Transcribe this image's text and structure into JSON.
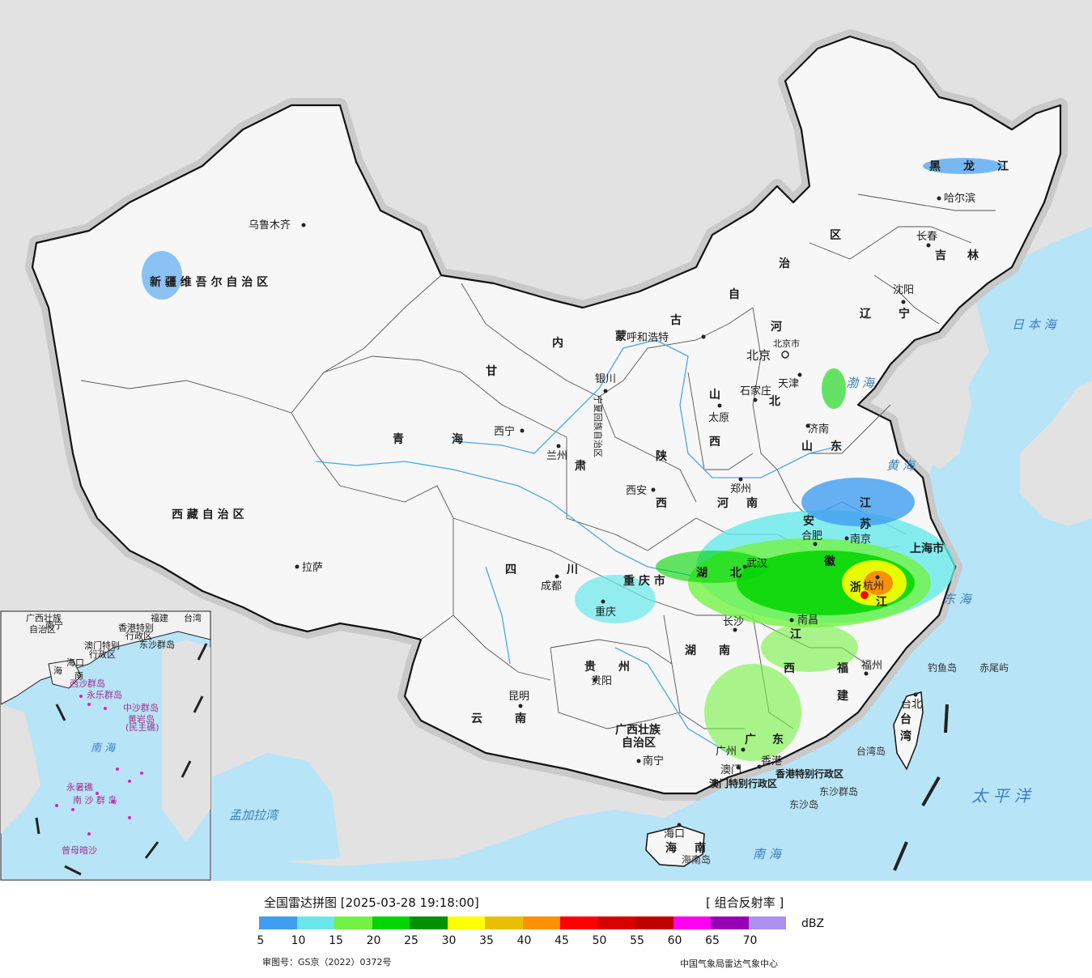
{
  "title": "全国雷达拼图 [2025-03-28 19:18:00]",
  "product": "[ 组合反射率 ]",
  "unit": "dBZ",
  "approval": "审图号：GS京（2022）0372号",
  "agency": "中国气象局雷达气象中心",
  "legend": {
    "colors": [
      "#3f9ef0",
      "#68e8ea",
      "#73f243",
      "#00d600",
      "#009100",
      "#ffff00",
      "#e6c000",
      "#ff9000",
      "#ff0000",
      "#d80000",
      "#c00000",
      "#ff00f0",
      "#9600b4",
      "#ad90f0"
    ],
    "ticks": [
      "5",
      "10",
      "15",
      "20",
      "25",
      "30",
      "35",
      "40",
      "45",
      "50",
      "55",
      "60",
      "65",
      "70"
    ]
  },
  "provinces": {
    "xinjiang": "新 疆 维 吾 尔 自 治 区",
    "xizang": "西 藏 自 治 区",
    "qinghai_1": "青",
    "qinghai_2": "海",
    "gansu_1": "甘",
    "gansu_2": "肃",
    "neimenggu_1": "内",
    "neimenggu_2": "蒙",
    "neimenggu_3": "古",
    "neimenggu_4": "自",
    "neimenggu_5": "治",
    "neimenggu_6": "区",
    "heilongjiang_1": "黑",
    "heilongjiang_2": "龙",
    "heilongjiang_3": "江",
    "jilin_1": "吉",
    "jilin_2": "林",
    "liaoning_1": "辽",
    "liaoning_2": "宁",
    "hebei_1": "河",
    "hebei_2": "北",
    "shanxi_1": "山",
    "shanxi_2": "西",
    "shaanxi_1": "陕",
    "shaanxi_2": "西",
    "shandong_1": "山",
    "shandong_2": "东",
    "henan_1": "河",
    "henan_2": "南",
    "jiangsu_1": "江",
    "jiangsu_2": "苏",
    "anhui_1": "安",
    "anhui_2": "徽",
    "hubei_1": "湖",
    "hubei_2": "北",
    "sichuan_1": "四",
    "sichuan_2": "川",
    "chongqing": "重 庆 市",
    "hunan_1": "湖",
    "hunan_2": "南",
    "jiangxi_1": "江",
    "jiangxi_2": "西",
    "zhejiang_1": "浙",
    "zhejiang_2": "江",
    "fujian_1": "福",
    "fujian_2": "建",
    "guizhou_1": "贵",
    "guizhou_2": "州",
    "yunnan_1": "云",
    "yunnan_2": "南",
    "guangxi_1": "广西壮族",
    "guangxi_2": "自治区",
    "guangdong_1": "广",
    "guangdong_2": "东",
    "hainan_1": "海",
    "hainan_2": "南",
    "taiwan_1": "台",
    "taiwan_2": "湾",
    "shanghai": "上海市",
    "ningxia": "宁夏回族自治区",
    "tianjin": "天津",
    "beijing_city": "北京市",
    "xianggang": "香港特别行政区",
    "aomen": "澳门特别行政区"
  },
  "cities": {
    "urumqi": "乌鲁木齐",
    "lhasa": "拉萨",
    "xining": "西宁",
    "lanzhou": "兰州",
    "yinchuan": "银川",
    "huhehaote": "呼和浩特",
    "beijing": "北京",
    "tianjin": "天津",
    "shijiazhuang": "石家庄",
    "taiyuan": "太原",
    "jinan": "济南",
    "zhengzhou": "郑州",
    "xian": "西安",
    "chengdu": "成都",
    "chongqing": "重庆",
    "wuhan": "武汉",
    "changsha": "长沙",
    "nanchang": "南昌",
    "hefei": "合肥",
    "nanjing": "南京",
    "hangzhou": "杭州",
    "fuzhou": "福州",
    "guiyang": "贵阳",
    "kunming": "昆明",
    "nanning": "南宁",
    "guangzhou": "广州",
    "aomen": "澳门",
    "xianggang": "香港",
    "haikou": "海口",
    "taibei": "台北",
    "shenyang": "沈阳",
    "changchun": "长春",
    "haerbin": "哈尔滨"
  },
  "seas": {
    "riben": "日 本 海",
    "bohai": "渤 海",
    "huanghai": "黄 海",
    "donghai": "东 海",
    "taipingyang": "太 平 洋",
    "nanhai": "南 海",
    "mengjiala": "孟加拉湾"
  },
  "islands": {
    "diaoyu": "钓鱼岛",
    "chiwei": "赤尾屿",
    "taiwan_dao": "台湾岛",
    "dongsha_qundao": "东沙群岛",
    "dongsha_dao": "东沙岛",
    "hainan_dao": "海南岛"
  },
  "inset": {
    "guangxi": "广西壮族",
    "guangxi_2": "自治区",
    "nanning": "南宁",
    "fujian": "福建",
    "taiwan": "台湾",
    "xianggang": "香港特别",
    "xianggang_2": "行政区",
    "aomen": "澳门特别",
    "aomen_2": "行政区",
    "dongsha": "东沙群岛",
    "haikou": "海口",
    "hainan_1": "海",
    "hainan_2": "南",
    "xisha": "西沙群岛",
    "yongle": "永乐群岛",
    "zhongsha": "中沙群岛",
    "huangyan": "黄岩岛",
    "huangyan_2": "(民主礁)",
    "nanhai": "南  海",
    "yongshu": "永暑礁",
    "nansha": "南 沙 群 岛",
    "zengmu": "曾母暗沙"
  }
}
